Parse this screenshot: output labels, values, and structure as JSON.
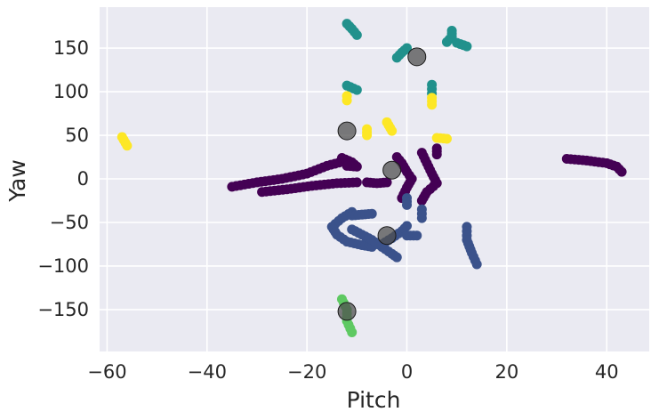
{
  "chart_data": {
    "type": "scatter",
    "title": "",
    "xlabel": "Pitch",
    "ylabel": "Yaw",
    "xlim": [
      -61.5,
      48.5
    ],
    "ylim": [
      -198,
      197
    ],
    "xticks": [
      -60,
      -40,
      -20,
      0,
      20,
      40
    ],
    "yticks": [
      -150,
      -100,
      -50,
      0,
      50,
      100,
      150
    ],
    "tick_labels_x": [
      "−60",
      "−40",
      "−20",
      "0",
      "20",
      "40"
    ],
    "tick_labels_y": [
      "−150",
      "−100",
      "−50",
      "0",
      "50",
      "100",
      "150"
    ],
    "grid": true,
    "background": "#eaeaf2",
    "series": [
      {
        "color": "#440154",
        "segments": [
          [
            [
              -35,
              -9
            ],
            [
              -30,
              -4
            ],
            [
              -25,
              0
            ],
            [
              -20,
              6
            ],
            [
              -16,
              15
            ],
            [
              -12,
              21
            ]
          ],
          [
            [
              -29,
              -15
            ],
            [
              -24,
              -12
            ],
            [
              -19,
              -8
            ],
            [
              -14,
              -5
            ],
            [
              -10,
              -4
            ]
          ],
          [
            [
              -13,
              24
            ],
            [
              -11,
              19
            ],
            [
              -10,
              14
            ],
            [
              -12,
              15
            ]
          ],
          [
            [
              -8,
              -4
            ],
            [
              -6,
              -5
            ],
            [
              -4,
              -4
            ]
          ],
          [
            [
              -2,
              25
            ],
            [
              -1,
              18
            ],
            [
              0,
              8
            ],
            [
              1,
              0
            ],
            [
              0,
              -10
            ],
            [
              -1,
              -22
            ]
          ],
          [
            [
              3,
              30
            ],
            [
              4,
              18
            ],
            [
              5,
              6
            ],
            [
              6,
              -5
            ],
            [
              4,
              -15
            ],
            [
              3,
              -25
            ]
          ],
          [
            [
              6,
              35
            ],
            [
              6,
              28
            ]
          ],
          [
            [
              32,
              23
            ],
            [
              36,
              21
            ],
            [
              40,
              18
            ],
            [
              42,
              14
            ],
            [
              43,
              8
            ]
          ]
        ]
      },
      {
        "color": "#3b528b",
        "segments": [
          [
            [
              -11,
              -38
            ],
            [
              -13,
              -45
            ],
            [
              -15,
              -55
            ],
            [
              -14,
              -64
            ],
            [
              -12,
              -72
            ],
            [
              -9,
              -76
            ],
            [
              -7,
              -78
            ]
          ],
          [
            [
              -11,
              -42
            ],
            [
              -9,
              -41
            ],
            [
              -7,
              -40
            ]
          ],
          [
            [
              -11,
              -58
            ],
            [
              -9,
              -64
            ],
            [
              -7,
              -70
            ],
            [
              -5,
              -78
            ],
            [
              -3,
              -86
            ],
            [
              -2,
              -90
            ]
          ],
          [
            [
              -5,
              -75
            ],
            [
              -3,
              -68
            ],
            [
              -1,
              -60
            ],
            [
              0,
              -54
            ]
          ],
          [
            [
              0,
              -65
            ],
            [
              2,
              -65
            ]
          ],
          [
            [
              3,
              -35
            ],
            [
              3,
              -45
            ]
          ],
          [
            [
              0,
              -22
            ],
            [
              0,
              -30
            ]
          ],
          [
            [
              12,
              -55
            ],
            [
              12,
              -70
            ],
            [
              13,
              -85
            ],
            [
              14,
              -98
            ]
          ]
        ]
      },
      {
        "color": "#21918c",
        "segments": [
          [
            [
              -12,
              178
            ],
            [
              -11,
              172
            ],
            [
              -10,
              165
            ]
          ],
          [
            [
              -12,
              107
            ],
            [
              -10,
              102
            ]
          ],
          [
            [
              -2,
              139
            ],
            [
              -1,
              145
            ],
            [
              0,
              150
            ]
          ],
          [
            [
              5,
              108
            ],
            [
              5,
              98
            ]
          ],
          [
            [
              8,
              157
            ],
            [
              9,
              163
            ],
            [
              9,
              170
            ]
          ],
          [
            [
              10,
              156
            ],
            [
              12,
              152
            ]
          ]
        ]
      },
      {
        "color": "#5ec962",
        "segments": [
          [
            [
              -13,
              -138
            ],
            [
              -12,
              -150
            ],
            [
              -12,
              -163
            ],
            [
              -11,
              -176
            ]
          ]
        ]
      },
      {
        "color": "#fde725",
        "segments": [
          [
            [
              -57,
              48
            ],
            [
              -56,
              38
            ]
          ],
          [
            [
              -12,
              95
            ],
            [
              -12,
              90
            ]
          ],
          [
            [
              -8,
              57
            ],
            [
              -8,
              50
            ]
          ],
          [
            [
              -4,
              65
            ],
            [
              -3,
              55
            ]
          ],
          [
            [
              5,
              93
            ],
            [
              5,
              85
            ]
          ],
          [
            [
              6,
              47
            ],
            [
              8,
              46
            ]
          ]
        ]
      }
    ],
    "centers": {
      "color": "#505050",
      "points": [
        [
          2,
          140
        ],
        [
          -12,
          55
        ],
        [
          -3,
          10
        ],
        [
          -4,
          -65
        ],
        [
          -12,
          -152
        ]
      ]
    }
  }
}
